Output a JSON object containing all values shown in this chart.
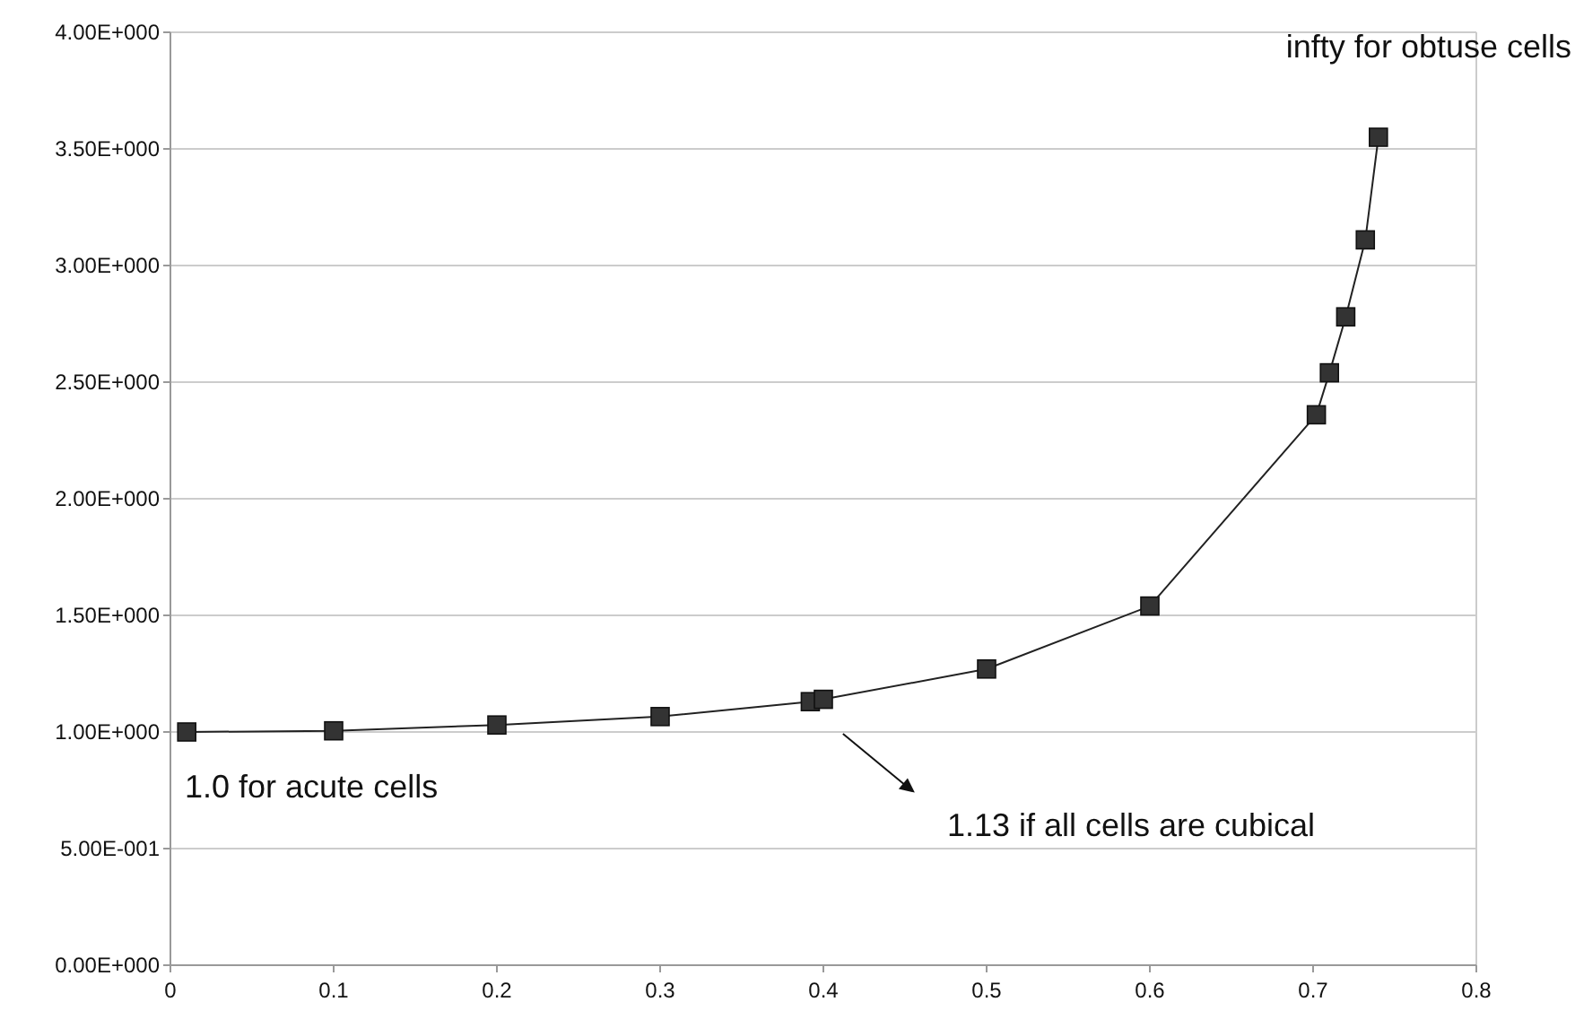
{
  "chart_data": {
    "type": "line",
    "x": [
      0.01,
      0.1,
      0.2,
      0.3,
      0.392,
      0.4,
      0.5,
      0.6,
      0.702,
      0.71,
      0.72,
      0.732,
      0.74
    ],
    "series": [
      {
        "color": "#333333",
        "values": [
          1.0,
          1.005,
          1.03,
          1.066,
          1.13,
          1.14,
          1.27,
          1.54,
          2.36,
          2.54,
          2.78,
          3.11,
          3.55
        ]
      }
    ],
    "xlim": [
      0,
      0.8
    ],
    "xticks": [
      0,
      0.1,
      0.2,
      0.3,
      0.4,
      0.5,
      0.6,
      0.7,
      0.8
    ],
    "ylim": [
      0,
      4
    ],
    "yticks": [
      {
        "value": 0,
        "label": "0.00E+000"
      },
      {
        "value": 0.5,
        "label": "5.00E-001"
      },
      {
        "value": 1,
        "label": "1.00E+000"
      },
      {
        "value": 1.5,
        "label": "1.50E+000"
      },
      {
        "value": 2,
        "label": "2.00E+000"
      },
      {
        "value": 2.5,
        "label": "2.50E+000"
      },
      {
        "value": 3,
        "label": "3.00E+000"
      },
      {
        "value": 3.5,
        "label": "3.50E+000"
      },
      {
        "value": 4,
        "label": "4.00E+000"
      }
    ],
    "grid": "y",
    "marker": "square",
    "line_style": "solid",
    "annotations": [
      "infty for obtuse cells",
      "1.0 for acute cells",
      "1.13 if all cells are cubical"
    ]
  }
}
